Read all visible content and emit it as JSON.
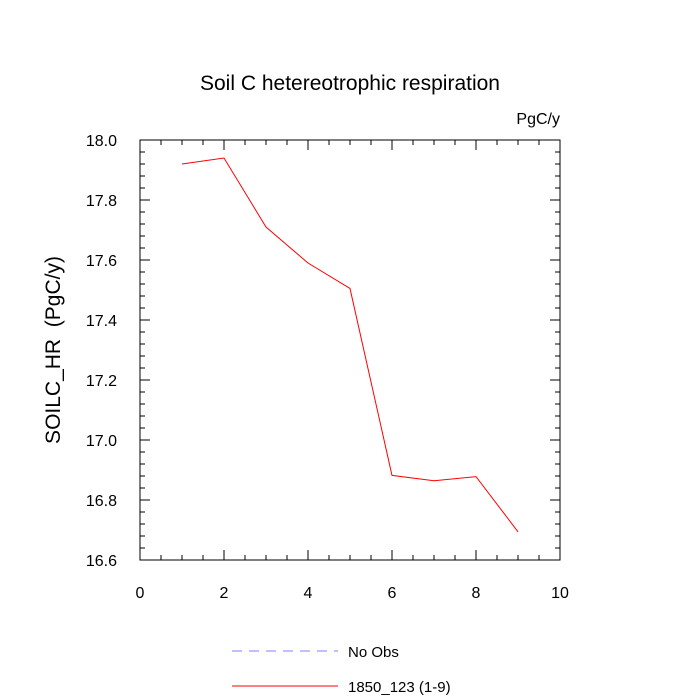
{
  "chart_data": {
    "type": "line",
    "title": "Soil C hetereotrophic respiration",
    "units": "PgC/y",
    "ylabel": "SOILC_HR  (PgC/y)",
    "xlabel": "",
    "xlim": [
      0,
      10
    ],
    "ylim": [
      16.6,
      18.0
    ],
    "xticks": [
      0,
      2,
      4,
      6,
      8,
      10
    ],
    "yticks": [
      16.6,
      16.8,
      17.0,
      17.2,
      17.4,
      17.6,
      17.8,
      18.0
    ],
    "xtick_labels": [
      "0",
      "2",
      "4",
      "6",
      "8",
      "10"
    ],
    "ytick_labels": [
      "16.6",
      "16.8",
      "17.0",
      "17.2",
      "17.4",
      "17.6",
      "17.8",
      "18.0"
    ],
    "grid": false,
    "legend_position": "bottom-center",
    "series": [
      {
        "name": "1850_123 (1-9)",
        "color": "#ff0000",
        "dash": "solid",
        "x": [
          1,
          2,
          3,
          4,
          5,
          6,
          7,
          8,
          9
        ],
        "y": [
          17.92,
          17.94,
          17.71,
          17.59,
          17.505,
          16.882,
          16.864,
          16.878,
          16.694
        ]
      }
    ],
    "legend": [
      {
        "label": "No Obs",
        "color": "#8080ff",
        "dash": "dashed"
      },
      {
        "label": "1850_123 (1-9)",
        "color": "#ff0000",
        "dash": "solid"
      }
    ]
  }
}
